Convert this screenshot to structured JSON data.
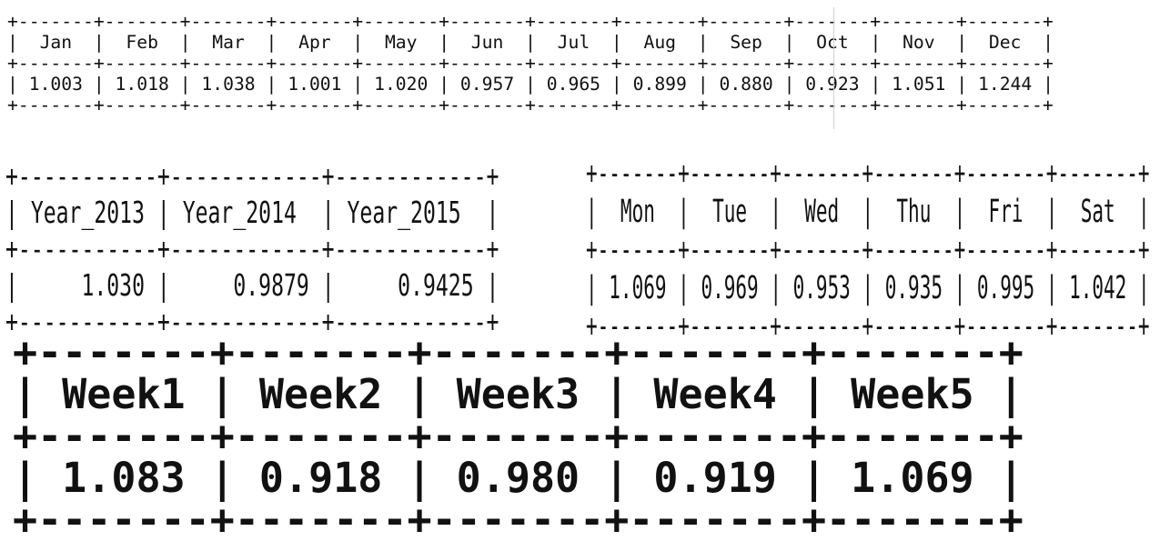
{
  "tables": {
    "months": {
      "headers": [
        "Jan",
        "Feb",
        "Mar",
        "Apr",
        "May",
        "Jun",
        "Jul",
        "Aug",
        "Sep",
        "Oct",
        "Nov",
        "Dec"
      ],
      "values": [
        "1.003",
        "1.018",
        "1.038",
        "1.001",
        "1.020",
        "0.957",
        "0.965",
        "0.899",
        "0.880",
        "0.923",
        "1.051",
        "1.244"
      ]
    },
    "years": {
      "headers": [
        "Year_2013",
        "Year_2014",
        "Year_2015"
      ],
      "values": [
        "1.030",
        "0.9879",
        "0.9425"
      ]
    },
    "days": {
      "headers": [
        "Mon",
        "Tue",
        "Wed",
        "Thu",
        "Fri",
        "Sat"
      ],
      "values": [
        "1.069",
        "0.969",
        "0.953",
        "0.935",
        "0.995",
        "1.042"
      ]
    },
    "weeks": {
      "headers": [
        "Week1",
        "Week2",
        "Week3",
        "Week4",
        "Week5"
      ],
      "values": [
        "1.083",
        "0.918",
        "0.980",
        "0.919",
        "1.069"
      ]
    }
  }
}
